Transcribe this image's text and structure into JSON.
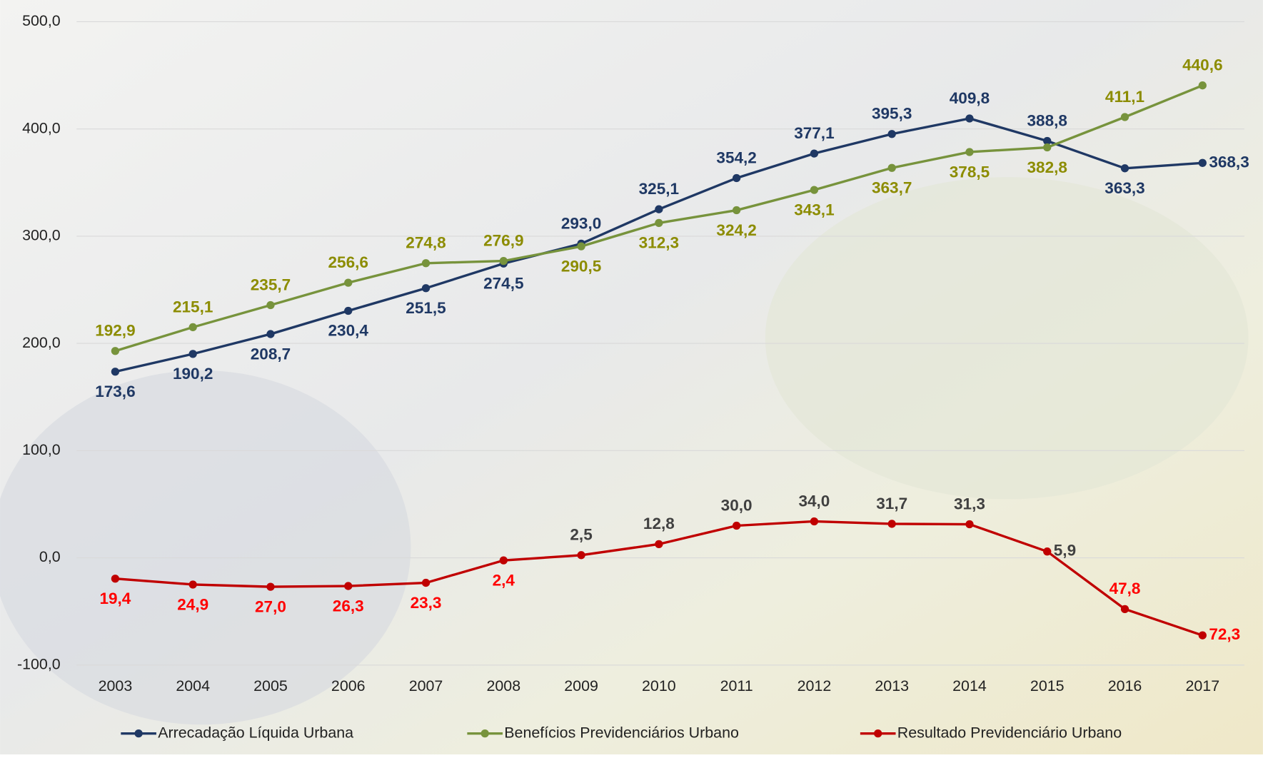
{
  "chart_data": {
    "type": "line",
    "categories": [
      "2003",
      "2004",
      "2005",
      "2006",
      "2007",
      "2008",
      "2009",
      "2010",
      "2011",
      "2012",
      "2013",
      "2014",
      "2015",
      "2016",
      "2017"
    ],
    "ylim": [
      -100,
      500
    ],
    "yticks": [
      {
        "value": -100,
        "label": "-100,0"
      },
      {
        "value": 0,
        "label": "0,0"
      },
      {
        "value": 100,
        "label": "100,0"
      },
      {
        "value": 200,
        "label": "200,0"
      },
      {
        "value": 300,
        "label": "300,0"
      },
      {
        "value": 400,
        "label": "400,0"
      },
      {
        "value": 500,
        "label": "500,0"
      }
    ],
    "grid": true,
    "legend": "bottom",
    "series": [
      {
        "name": "Arrecadação Líquida Urbana",
        "color": "#1f3864",
        "label_color": "#1f3864",
        "values": [
          173.6,
          190.2,
          208.7,
          230.4,
          251.5,
          274.5,
          293.0,
          325.1,
          354.2,
          377.1,
          395.3,
          409.8,
          388.8,
          363.3,
          368.3
        ],
        "value_labels": [
          "173,6",
          "190,2",
          "208,7",
          "230,4",
          "251,5",
          "274,5",
          "293,0",
          "325,1",
          "354,2",
          "377,1",
          "395,3",
          "409,8",
          "388,8",
          "363,3",
          "368,3"
        ]
      },
      {
        "name": "Benefícios Previdenciários Urbano",
        "color": "#77933c",
        "label_color": "#8c8c00",
        "values": [
          192.9,
          215.1,
          235.7,
          256.6,
          274.8,
          276.9,
          290.5,
          312.3,
          324.2,
          343.1,
          363.7,
          378.5,
          382.8,
          411.1,
          440.6
        ],
        "value_labels": [
          "192,9",
          "215,1",
          "235,7",
          "256,6",
          "274,8",
          "276,9",
          "290,5",
          "312,3",
          "324,2",
          "343,1",
          "363,7",
          "378,5",
          "382,8",
          "411,1",
          "440,6"
        ]
      },
      {
        "name": "Resultado Previdenciário Urbano",
        "color": "#c00000",
        "label_color": "#ff0000",
        "values": [
          -19.4,
          -24.9,
          -27.0,
          -26.3,
          -23.3,
          -2.4,
          2.5,
          12.8,
          30.0,
          34.0,
          31.7,
          31.3,
          5.9,
          -47.8,
          -72.3
        ],
        "value_labels": [
          "19,4",
          "24,9",
          "27,0",
          "26,3",
          "23,3",
          "2,4",
          "2,5",
          "12,8",
          "30,0",
          "34,0",
          "31,7",
          "31,3",
          "5,9",
          "47,8",
          "72,3"
        ]
      }
    ]
  }
}
